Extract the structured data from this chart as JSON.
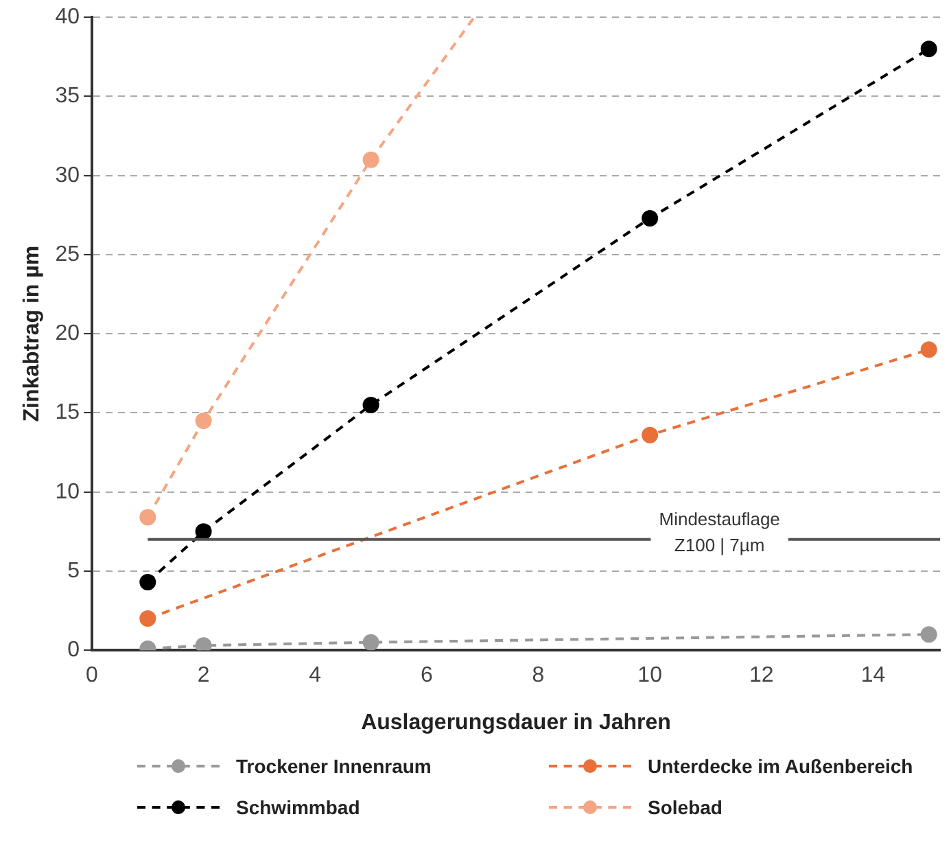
{
  "chart_data": {
    "type": "line",
    "xlabel": "Auslagerungsdauer in Jahren",
    "ylabel": "Zinkabtrag in µm",
    "xlim": [
      0,
      15.2
    ],
    "xticks": [
      0,
      2,
      4,
      6,
      8,
      10,
      12,
      14
    ],
    "ylim": [
      0,
      40
    ],
    "yticks": [
      0,
      5,
      10,
      15,
      20,
      25,
      30,
      35,
      40
    ],
    "grid": "y",
    "legend": "bottom",
    "marker": "circle",
    "line_style": "dashed",
    "series": [
      {
        "name": "Trockener Innenraum",
        "color": "#999999",
        "x": [
          1,
          2,
          5,
          15
        ],
        "values": [
          0.1,
          0.3,
          0.5,
          1.0
        ]
      },
      {
        "name": "Unterdecke im Außenbereich",
        "color": "#e8703a",
        "x": [
          1,
          10,
          15
        ],
        "values": [
          2.0,
          13.6,
          19.0
        ]
      },
      {
        "name": "Schwimmbad",
        "color": "#000000",
        "x": [
          1,
          2,
          5,
          10,
          15
        ],
        "values": [
          4.3,
          7.5,
          15.5,
          27.3,
          38.0
        ]
      },
      {
        "name": "Solebad",
        "color": "#f4a582",
        "x": [
          1,
          2,
          5
        ],
        "values": [
          8.4,
          14.5,
          31.0
        ]
      },
      {
        "color": "#f4a582",
        "x": [
          5,
          6.85
        ],
        "values": [
          31.0,
          40
        ],
        "marker": "none"
      }
    ],
    "ref_lines": [
      {
        "axis": "y",
        "value": 7,
        "label": "Mindestauflage\nZ100 | 7µm",
        "color": "#555555"
      }
    ]
  }
}
